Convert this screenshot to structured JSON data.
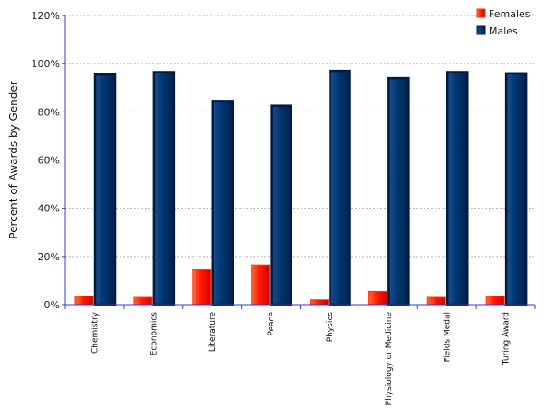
{
  "chart_data": {
    "type": "bar",
    "title": "",
    "xlabel": "",
    "ylabel": "Percent of Awards by Gender",
    "ylim": [
      0,
      120
    ],
    "yticks": [
      0,
      20,
      40,
      60,
      80,
      100,
      120
    ],
    "ytick_labels": [
      "0%",
      "20%",
      "40%",
      "60%",
      "80%",
      "100%",
      "120%"
    ],
    "categories": [
      "Chemistry",
      "Economics",
      "Literature",
      "Peace",
      "Physics",
      "Physiology or Medicine",
      "Fields Medal",
      "Turing Award"
    ],
    "series": [
      {
        "name": "Females",
        "values": [
          3.5,
          3,
          14.5,
          16.5,
          2,
          5.5,
          3,
          3.5
        ]
      },
      {
        "name": "Males",
        "values": [
          95.5,
          96.5,
          84.5,
          82.5,
          97,
          94,
          96.5,
          96
        ]
      }
    ],
    "grid": true,
    "legend_position": "top-right"
  },
  "colors": {
    "females_fill": "#ff1a00",
    "females_light": "#ff6a40",
    "males_fill": "#00336e",
    "males_edge": "#001a40",
    "gridline": "#b3b3b3",
    "axis": "#3a3ad0"
  }
}
